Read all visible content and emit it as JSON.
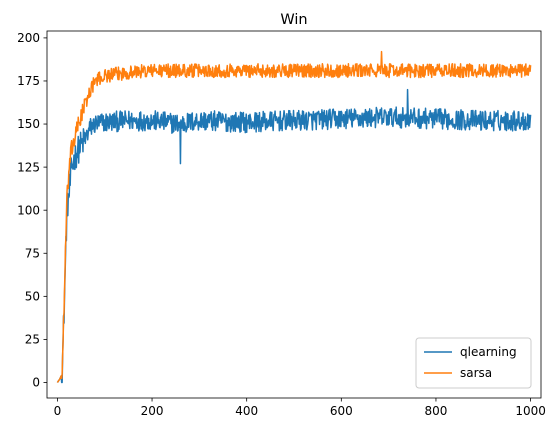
{
  "chart_data": {
    "type": "line",
    "title": "Win",
    "xlabel": "",
    "ylabel": "",
    "xlim": [
      -22,
      1022
    ],
    "ylim": [
      -9,
      204
    ],
    "xticks": [
      0,
      200,
      400,
      600,
      800,
      1000
    ],
    "yticks": [
      0,
      25,
      50,
      75,
      100,
      125,
      150,
      175,
      200
    ],
    "grid": false,
    "legend_position": "lower-right",
    "x_range": [
      0,
      1000
    ],
    "series": [
      {
        "name": "qlearning",
        "color": "#1f77b4",
        "description_points": [
          [
            0,
            0
          ],
          [
            5,
            2
          ],
          [
            10,
            5
          ],
          [
            15,
            50
          ],
          [
            20,
            100
          ],
          [
            25,
            110
          ],
          [
            30,
            125
          ],
          [
            40,
            133
          ],
          [
            50,
            138
          ],
          [
            60,
            142
          ],
          [
            70,
            148
          ],
          [
            80,
            150
          ],
          [
            100,
            151
          ],
          [
            150,
            152
          ],
          [
            200,
            152
          ],
          [
            260,
            150
          ],
          [
            300,
            152
          ],
          [
            400,
            151
          ],
          [
            500,
            152
          ],
          [
            600,
            153
          ],
          [
            700,
            154
          ],
          [
            800,
            153
          ],
          [
            900,
            152
          ],
          [
            1000,
            152
          ]
        ],
        "noise_amplitude": 6,
        "min_spike": [
          260,
          127
        ],
        "max_spike": [
          740,
          170
        ]
      },
      {
        "name": "sarsa",
        "color": "#ff7f0e",
        "description_points": [
          [
            0,
            0
          ],
          [
            5,
            2
          ],
          [
            10,
            5
          ],
          [
            15,
            55
          ],
          [
            20,
            105
          ],
          [
            25,
            125
          ],
          [
            30,
            135
          ],
          [
            40,
            145
          ],
          [
            50,
            155
          ],
          [
            60,
            162
          ],
          [
            70,
            170
          ],
          [
            80,
            175
          ],
          [
            100,
            178
          ],
          [
            150,
            180
          ],
          [
            200,
            181
          ],
          [
            300,
            181
          ],
          [
            400,
            181
          ],
          [
            500,
            181
          ],
          [
            600,
            181
          ],
          [
            700,
            181
          ],
          [
            800,
            181
          ],
          [
            900,
            181
          ],
          [
            1000,
            181
          ]
        ],
        "noise_amplitude": 4,
        "max_spike": [
          685,
          192
        ]
      }
    ]
  }
}
